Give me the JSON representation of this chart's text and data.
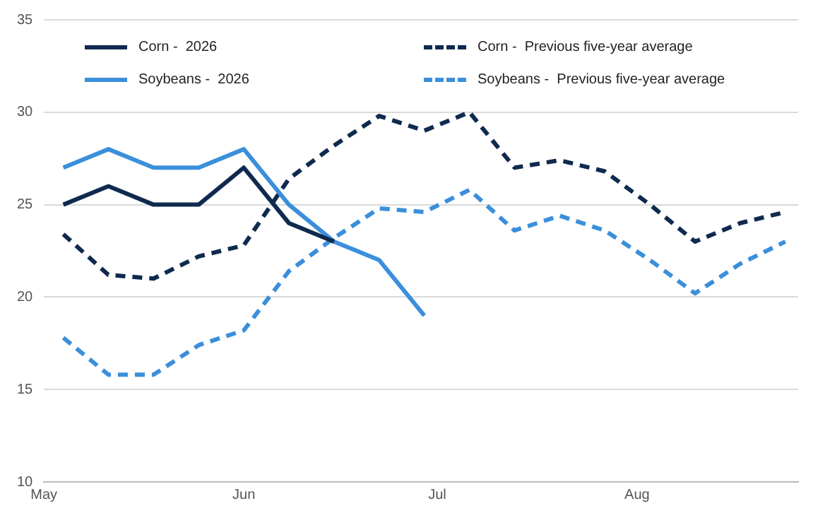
{
  "chart_data": {
    "type": "line",
    "x": [
      "--05-04",
      "--05-11",
      "--05-18",
      "--05-25",
      "--06-01",
      "--06-08",
      "--06-15",
      "--06-22",
      "--06-29",
      "--07-06",
      "--07-13",
      "--07-20",
      "--07-27",
      "--08-03",
      "--08-10",
      "--08-17",
      "--08-24"
    ],
    "series": [
      {
        "name": "Corn -  2026",
        "color": "#0f2a4e",
        "line_style": "solid",
        "values": [
          25,
          26,
          25,
          25,
          27,
          24,
          23,
          null,
          null,
          null,
          null,
          null,
          null,
          null,
          null,
          null,
          null
        ]
      },
      {
        "name": "Soybeans -  2026",
        "color": "#3b8fdb",
        "line_style": "solid",
        "values": [
          27,
          28,
          27,
          27,
          28,
          25,
          23,
          22,
          19,
          null,
          null,
          null,
          null,
          null,
          null,
          null,
          null
        ]
      },
      {
        "name": "Corn -  Previous five-year average",
        "color": "#0f2a4e",
        "line_style": "dashed",
        "values": [
          23.4,
          21.2,
          21.0,
          22.2,
          22.8,
          26.4,
          28.2,
          29.8,
          29.0,
          30.0,
          27.0,
          27.4,
          26.8,
          25.0,
          23.0,
          24.0,
          24.6
        ]
      },
      {
        "name": "Soybeans -  Previous five-year average",
        "color": "#3b8fdb",
        "line_style": "dashed",
        "values": [
          17.8,
          15.8,
          15.8,
          17.4,
          18.2,
          21.4,
          23.2,
          24.8,
          24.6,
          25.8,
          23.6,
          24.4,
          23.6,
          22.0,
          20.2,
          21.8,
          23.0
        ]
      }
    ],
    "xlim": [
      "--05-01",
      "--08-26"
    ],
    "xticks": [
      {
        "value": "--05-01",
        "label": "May"
      },
      {
        "value": "--06-01",
        "label": "Jun"
      },
      {
        "value": "--07-01",
        "label": "Jul"
      },
      {
        "value": "--08-01",
        "label": "Aug"
      }
    ],
    "ylim": [
      10,
      35
    ],
    "yticks": [
      10,
      15,
      20,
      25,
      30,
      35
    ],
    "grid": "y",
    "legend": "top",
    "marker": "none"
  }
}
